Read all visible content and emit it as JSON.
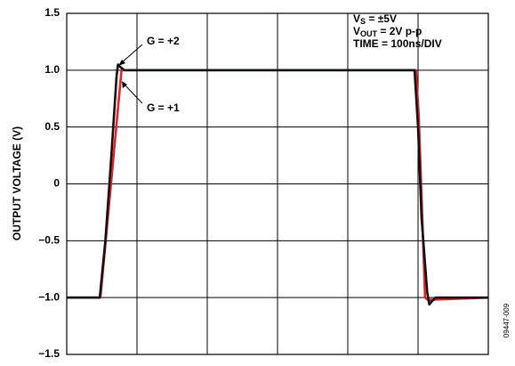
{
  "chart_data": {
    "type": "line",
    "ylabel": "OUTPUT VOLTAGE (V)",
    "xlim": [
      0,
      600
    ],
    "xticks": [
      0,
      100,
      200,
      300,
      400,
      500,
      600
    ],
    "ylim": [
      -1.5,
      1.5
    ],
    "yticks": [
      {
        "value": -1.5,
        "label": "−1.5"
      },
      {
        "value": -1.0,
        "label": "−1.0"
      },
      {
        "value": -0.5,
        "label": "−0.5"
      },
      0,
      0.5,
      {
        "value": 1.0,
        "label": "1.0"
      },
      1.5
    ],
    "grid": true,
    "series": [
      {
        "name": "G = +1",
        "color": "#e8202a",
        "x": [
          0,
          48,
          78,
          82,
          300,
          497,
          501,
          510,
          514,
          600
        ],
        "values": [
          -1,
          -1,
          1.0,
          1.0,
          1.0,
          1.0,
          0.6,
          -1.0,
          -1.02,
          -1.0
        ]
      },
      {
        "name": "G = +2",
        "color": "#111111",
        "x": [
          0,
          47,
          55,
          63,
          71,
          73,
          76,
          82,
          150,
          300,
          450,
          495,
          500,
          505,
          513,
          516,
          520,
          525,
          600
        ],
        "values": [
          -1,
          -1,
          -0.5,
          0.2,
          0.95,
          1.05,
          1.03,
          1.0,
          1.0,
          1.0,
          1.0,
          1.0,
          0.5,
          -0.3,
          -0.95,
          -1.06,
          -1.03,
          -1.0,
          -1.0
        ]
      }
    ],
    "conditions": [
      [
        "V",
        "S",
        " = ±5V"
      ],
      [
        "V",
        "OUT",
        " = 2V p-p"
      ],
      [
        "TIME = 100ns/DIV"
      ]
    ],
    "figure_id": "09447-009"
  }
}
